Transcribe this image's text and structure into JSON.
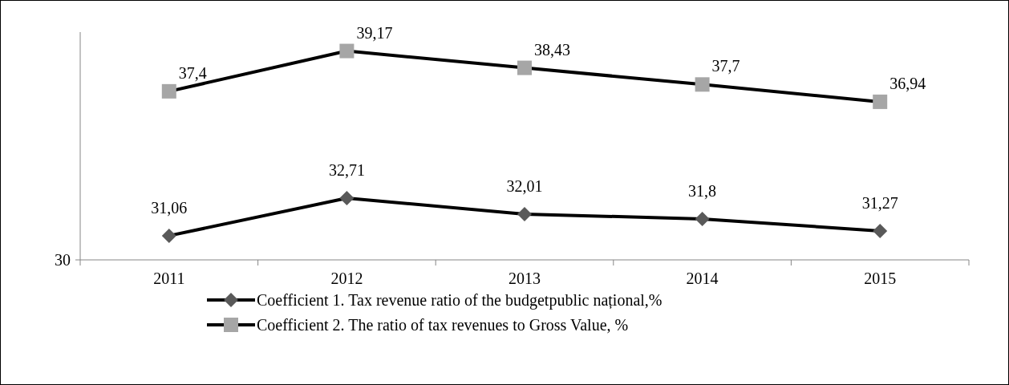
{
  "chart_data": {
    "type": "line",
    "categories": [
      "2011",
      "2012",
      "2013",
      "2014",
      "2015"
    ],
    "ylim": [
      30,
      40
    ],
    "annotations": [
      "30"
    ],
    "legend": "bottom",
    "series": [
      {
        "name": "Coefficient 1. Tax revenue ratio of the budgetpublic național,%",
        "color": "#000000",
        "marker": "diamond",
        "colors": [
          "#595959",
          "#595959",
          "#595959",
          "#595959",
          "#595959"
        ],
        "values": [
          31.06,
          32.71,
          32.01,
          31.8,
          31.27
        ],
        "value_labels": [
          "31,06",
          "32,71",
          "32,01",
          "31,8",
          "31,27"
        ]
      },
      {
        "name": "Coefficient 2. The ratio of tax revenues to Gross Value, %",
        "color": "#000000",
        "marker": "square",
        "colors": [
          "#a6a6a6",
          "#a6a6a6",
          "#a6a6a6",
          "#a6a6a6",
          "#a6a6a6"
        ],
        "values": [
          37.4,
          39.17,
          38.43,
          37.7,
          36.94
        ],
        "value_labels": [
          "37,4",
          "39,17",
          "38,43",
          "37,7",
          "36,94"
        ]
      }
    ]
  }
}
